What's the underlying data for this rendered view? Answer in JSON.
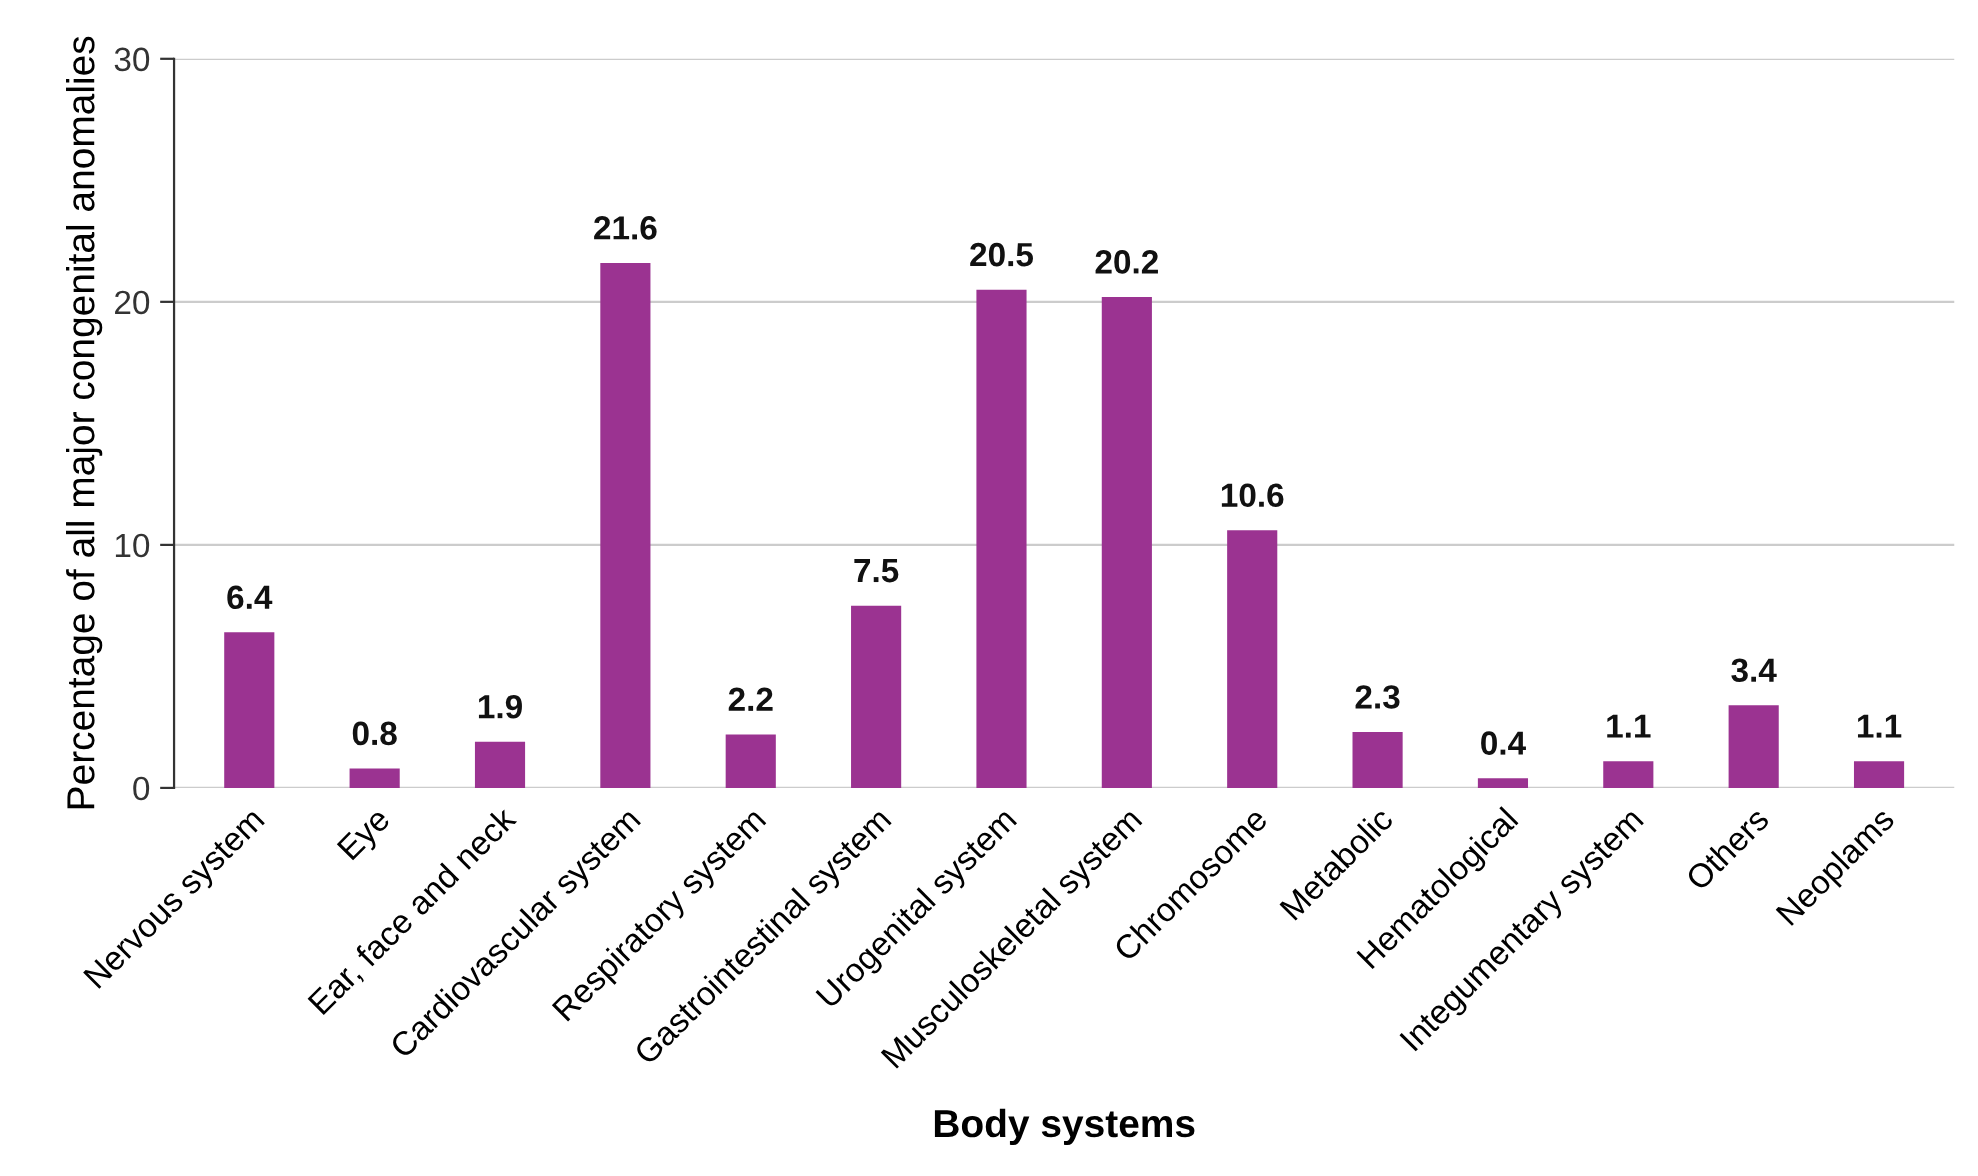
{
  "chart_data": {
    "type": "bar",
    "xlabel": "Body systems",
    "ylabel": "Percentage of all major congenital anomalies",
    "categories": [
      "Nervous system",
      "Eye",
      "Ear, face and neck",
      "Cardiovascular system",
      "Respiratory system",
      "Gastrointestinal system",
      "Urogenital system",
      "Musculoskeletal system",
      "Chromosome",
      "Metabolic",
      "Hematological",
      "Integumentary system",
      "Others",
      "Neoplams"
    ],
    "values": [
      6.4,
      0.8,
      1.9,
      21.6,
      2.2,
      7.5,
      20.5,
      20.2,
      10.6,
      2.3,
      0.4,
      1.1,
      3.4,
      1.1
    ],
    "color": "#9b3391",
    "ylim": [
      0,
      30
    ],
    "yticks": [
      0,
      10,
      20,
      30
    ],
    "grid": "y",
    "data_labels": true
  }
}
